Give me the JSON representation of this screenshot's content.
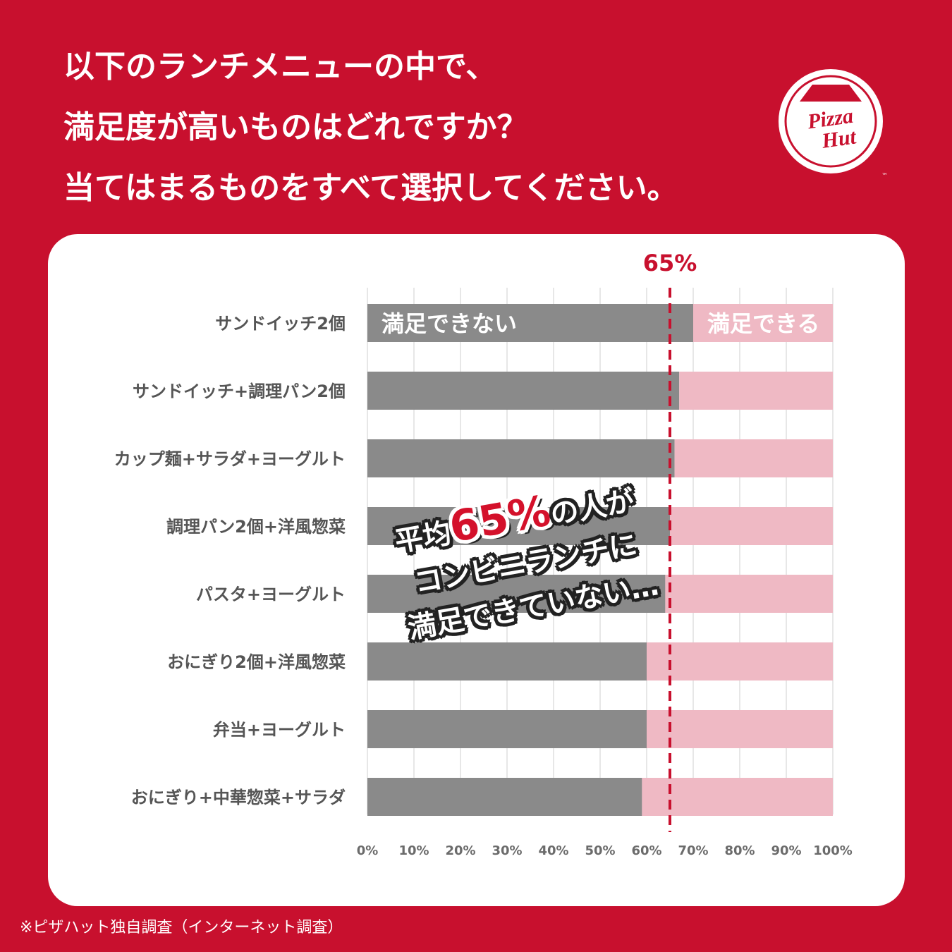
{
  "title": {
    "line1": "以下のランチメニューの中で、",
    "line2": "満足度が高いものはどれですか？",
    "line3": "当てはまるものをすべて選択してください。"
  },
  "logo": {
    "line1": "Pizza",
    "line2": "Hut",
    "tm": "™"
  },
  "callout": {
    "prefix": "平均",
    "big": "65%",
    "suffix": "の人が",
    "line2": "コンビニランチに",
    "line3": "満足できていない…"
  },
  "footnote": "※ピザハット独自調査（インターネット調査）",
  "colors": {
    "background": "#c8102e",
    "unsatisfied": "#8a8a8a",
    "satisfied": "#efb9c4",
    "avg_line": "#c8102e"
  },
  "chart_data": {
    "type": "bar",
    "orientation": "horizontal",
    "stacked": true,
    "categories": [
      "サンドイッチ2個",
      "サンドイッチ+調理パン2個",
      "カップ麺+サラダ+ヨーグルト",
      "調理パン2個+洋風惣菜",
      "パスタ+ヨーグルト",
      "おにぎり2個+洋風惣菜",
      "弁当+ヨーグルト",
      "おにぎり+中華惣菜+サラダ"
    ],
    "series": [
      {
        "name": "満足できない",
        "color": "#8a8a8a",
        "values": [
          70,
          67,
          66,
          65,
          64,
          60,
          60,
          59
        ]
      },
      {
        "name": "満足できる",
        "color": "#efb9c4",
        "values": [
          30,
          33,
          34,
          35,
          36,
          40,
          40,
          41
        ]
      }
    ],
    "xlim": [
      0,
      100
    ],
    "xticks": [
      "0%",
      "10%",
      "20%",
      "30%",
      "40%",
      "50%",
      "60%",
      "70%",
      "80%",
      "90%",
      "100%"
    ],
    "grid": true,
    "reference_line": {
      "value": 65,
      "label": "65%"
    }
  }
}
